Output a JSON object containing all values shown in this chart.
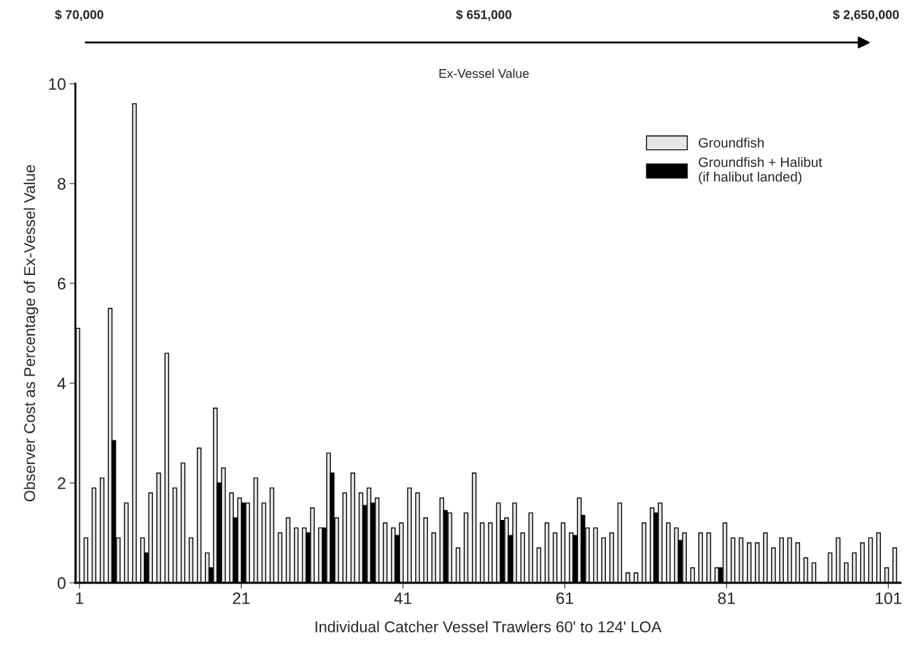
{
  "chart_data": {
    "type": "bar",
    "xlabel": "Individual Catcher Vessel Trawlers 60' to 124' LOA",
    "ylabel": "Observer Cost as Percentage of Ex-Vessel Value",
    "annotations": [
      "$ 70,000",
      "$ 651,000",
      "$ 2,650,000",
      "Ex-Vessel Value"
    ],
    "x": [
      1,
      2,
      3,
      4,
      5,
      6,
      7,
      8,
      9,
      10,
      11,
      12,
      13,
      14,
      15,
      16,
      17,
      18,
      19,
      20,
      21,
      22,
      23,
      24,
      25,
      26,
      27,
      28,
      29,
      30,
      31,
      32,
      33,
      34,
      35,
      36,
      37,
      38,
      39,
      40,
      41,
      42,
      43,
      44,
      45,
      46,
      47,
      48,
      49,
      50,
      51,
      52,
      53,
      54,
      55,
      56,
      57,
      58,
      59,
      60,
      61,
      62,
      63,
      64,
      65,
      66,
      67,
      68,
      69,
      70,
      71,
      72,
      73,
      74,
      75,
      76,
      77,
      78,
      79,
      80,
      81,
      82,
      83,
      84,
      85,
      86,
      87,
      88,
      89,
      90,
      91,
      92,
      93,
      94,
      95,
      96,
      97,
      98,
      99,
      100,
      101,
      102
    ],
    "series": [
      {
        "name": "Groundfish",
        "color": "#e6e6e6",
        "values": [
          5.1,
          0.9,
          1.9,
          2.1,
          5.5,
          0.9,
          1.6,
          9.6,
          0.9,
          1.8,
          2.2,
          4.6,
          1.9,
          2.4,
          0.9,
          2.7,
          0.6,
          3.5,
          2.3,
          1.8,
          1.7,
          1.6,
          2.1,
          1.6,
          1.9,
          1.0,
          1.3,
          1.1,
          1.1,
          1.5,
          1.1,
          2.6,
          1.3,
          1.8,
          2.2,
          1.8,
          1.9,
          1.7,
          1.2,
          1.1,
          1.2,
          1.9,
          1.8,
          1.3,
          1.0,
          1.7,
          1.4,
          0.7,
          1.4,
          2.2,
          1.2,
          1.2,
          1.6,
          1.3,
          1.6,
          1.0,
          1.4,
          0.7,
          1.2,
          1.0,
          1.2,
          1.0,
          1.7,
          1.1,
          1.1,
          0.9,
          1.0,
          1.6,
          0.2,
          0.2,
          1.2,
          1.5,
          1.6,
          1.2,
          1.1,
          1.0,
          0.3,
          1.0,
          1.0,
          0.3,
          1.2,
          0.9,
          0.9,
          0.8,
          0.8,
          1.0,
          0.7,
          0.9,
          0.9,
          0.8,
          0.5,
          0.4,
          null,
          0.6,
          0.9,
          0.4,
          0.6,
          0.8,
          0.9,
          1.0,
          0.3,
          0.7
        ]
      },
      {
        "name": "Groundfish + Halibut\n(if halibut landed)",
        "color": "#000000",
        "values": [
          null,
          null,
          null,
          null,
          2.85,
          null,
          null,
          null,
          0.6,
          null,
          null,
          null,
          null,
          null,
          null,
          null,
          0.3,
          2.0,
          null,
          1.3,
          1.6,
          null,
          null,
          null,
          null,
          null,
          null,
          null,
          1.0,
          null,
          1.1,
          2.2,
          null,
          null,
          null,
          1.55,
          1.6,
          null,
          null,
          0.95,
          null,
          null,
          null,
          null,
          null,
          1.45,
          null,
          null,
          null,
          null,
          null,
          null,
          1.25,
          0.95,
          null,
          null,
          null,
          null,
          null,
          null,
          null,
          0.95,
          1.35,
          null,
          null,
          null,
          null,
          null,
          null,
          null,
          null,
          1.4,
          null,
          null,
          0.85,
          null,
          null,
          null,
          null,
          0.3,
          null,
          null,
          null,
          null,
          null,
          null,
          null,
          null,
          null,
          null,
          null,
          null,
          null,
          null,
          null,
          null,
          null,
          null,
          null,
          null,
          null,
          null
        ]
      }
    ],
    "xlim": [
      0.5,
      102.5
    ],
    "xticks": [
      1,
      21,
      41,
      61,
      81,
      101
    ],
    "ylim": [
      0,
      10
    ],
    "yticks": [
      0,
      2,
      4,
      6,
      8,
      10
    ],
    "legend": "top right",
    "grid": false
  }
}
